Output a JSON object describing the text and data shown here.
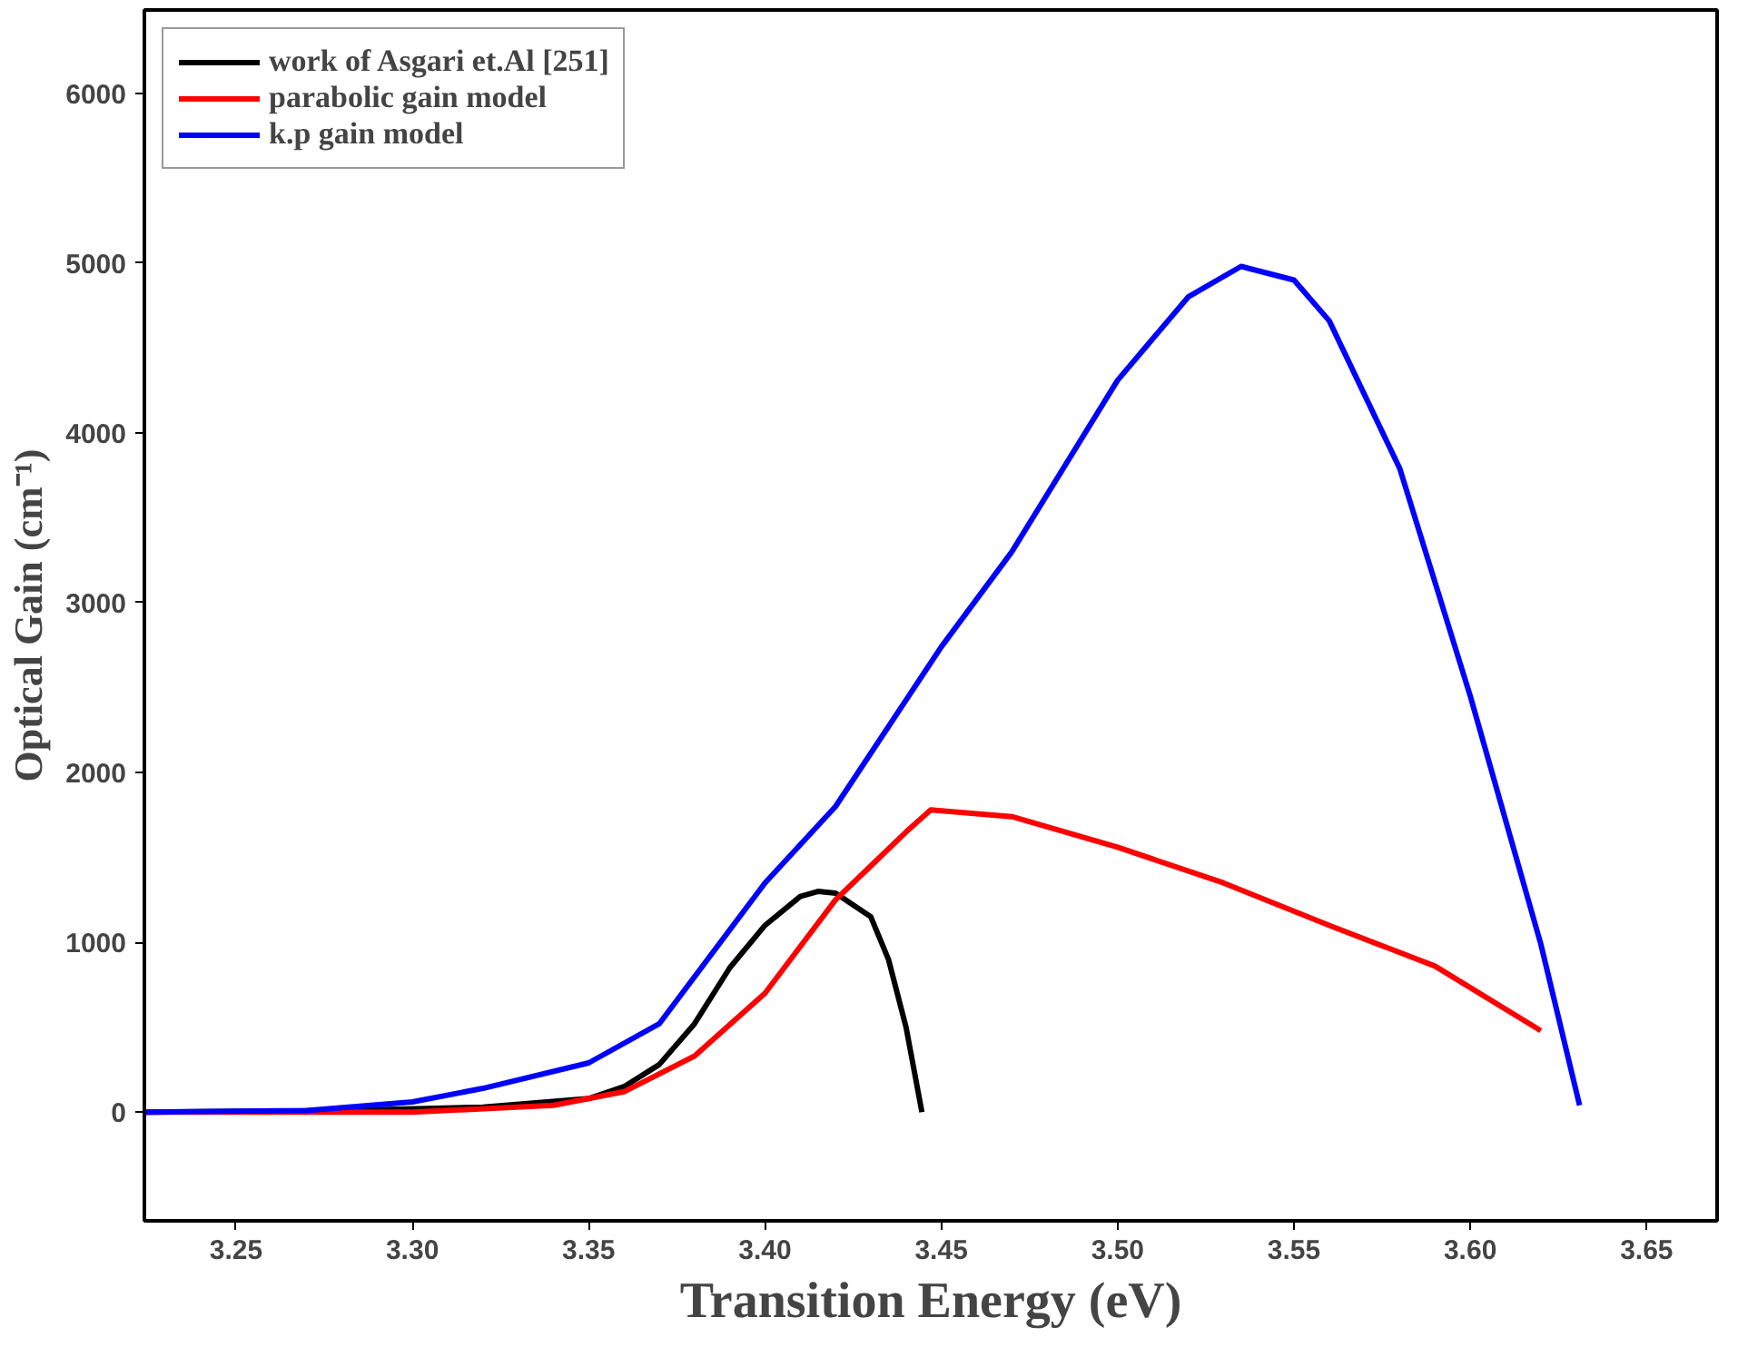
{
  "chart_data": {
    "type": "line",
    "xlabel": "Transition Energy (eV)",
    "ylabel": "Optical Gain (cm⁻¹)",
    "xlim": [
      3.224,
      3.67
    ],
    "ylim": [
      -640,
      6490
    ],
    "xticks": [
      3.25,
      {
        "value": 3.3,
        "label": "3.30"
      },
      3.35,
      {
        "value": 3.4,
        "label": "3.40"
      },
      3.45,
      {
        "value": 3.5,
        "label": "3.50"
      },
      3.55,
      {
        "value": 3.6,
        "label": "3.60"
      },
      3.65
    ],
    "yticks": [
      0,
      1000,
      2000,
      3000,
      4000,
      5000,
      6000
    ],
    "grid": false,
    "legend": "top left",
    "line_style": "solid",
    "series": [
      {
        "name": "work of Asgari et.Al [251]",
        "color": "#000000",
        "x": [
          3.224,
          3.28,
          3.32,
          3.35,
          3.36,
          3.37,
          3.38,
          3.39,
          3.4,
          3.41,
          3.415,
          3.42,
          3.43,
          3.435,
          3.44,
          3.4445
        ],
        "values": [
          0,
          10,
          30,
          80,
          150,
          280,
          520,
          850,
          1100,
          1270,
          1300,
          1290,
          1150,
          900,
          500,
          0
        ]
      },
      {
        "name": "parabolic gain model",
        "color": "#ff0000",
        "x": [
          3.224,
          3.3,
          3.34,
          3.36,
          3.38,
          3.4,
          3.42,
          3.43,
          3.44,
          3.447,
          3.47,
          3.5,
          3.53,
          3.56,
          3.59,
          3.62
        ],
        "values": [
          0,
          0,
          40,
          120,
          330,
          700,
          1250,
          1450,
          1650,
          1780,
          1740,
          1560,
          1350,
          1100,
          860,
          480
        ]
      },
      {
        "name": "k.p gain model",
        "color": "#0000ff",
        "x": [
          3.224,
          3.27,
          3.3,
          3.32,
          3.35,
          3.37,
          3.4,
          3.42,
          3.45,
          3.47,
          3.5,
          3.52,
          3.535,
          3.55,
          3.56,
          3.58,
          3.6,
          3.62,
          3.631
        ],
        "values": [
          0,
          10,
          60,
          140,
          290,
          520,
          1350,
          1800,
          2740,
          3300,
          4310,
          4800,
          4980,
          4900,
          4660,
          3790,
          2450,
          990,
          40
        ]
      }
    ]
  }
}
